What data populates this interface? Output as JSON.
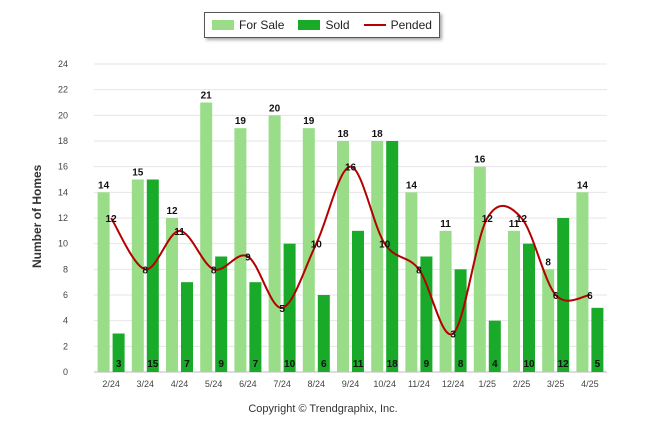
{
  "chart_data": {
    "type": "bar",
    "categories": [
      "2/24",
      "3/24",
      "4/24",
      "5/24",
      "6/24",
      "7/24",
      "8/24",
      "9/24",
      "10/24",
      "11/24",
      "12/24",
      "1/25",
      "2/25",
      "3/25",
      "4/25"
    ],
    "series": [
      {
        "name": "For Sale",
        "type": "bar",
        "color": "#99dd88",
        "values": [
          14,
          15,
          12,
          21,
          19,
          20,
          19,
          18,
          18,
          14,
          11,
          16,
          11,
          8,
          14
        ]
      },
      {
        "name": "Sold",
        "type": "bar",
        "color": "#1aaa2a",
        "values": [
          3,
          15,
          7,
          9,
          7,
          10,
          6,
          11,
          18,
          9,
          8,
          4,
          10,
          12,
          5
        ]
      },
      {
        "name": "Pended",
        "type": "line",
        "color": "#b50000",
        "values": [
          12,
          8,
          11,
          8,
          9,
          5,
          10,
          16,
          10,
          8,
          3,
          12,
          12,
          6,
          6
        ]
      }
    ],
    "ylabel": "Number of Homes",
    "ylim": [
      0,
      24
    ],
    "yticks": [
      0,
      2,
      4,
      6,
      8,
      10,
      12,
      14,
      16,
      18,
      20,
      22,
      24
    ],
    "grid": true,
    "legend": "top-center"
  },
  "footer": "Copyright © Trendgraphix, Inc."
}
